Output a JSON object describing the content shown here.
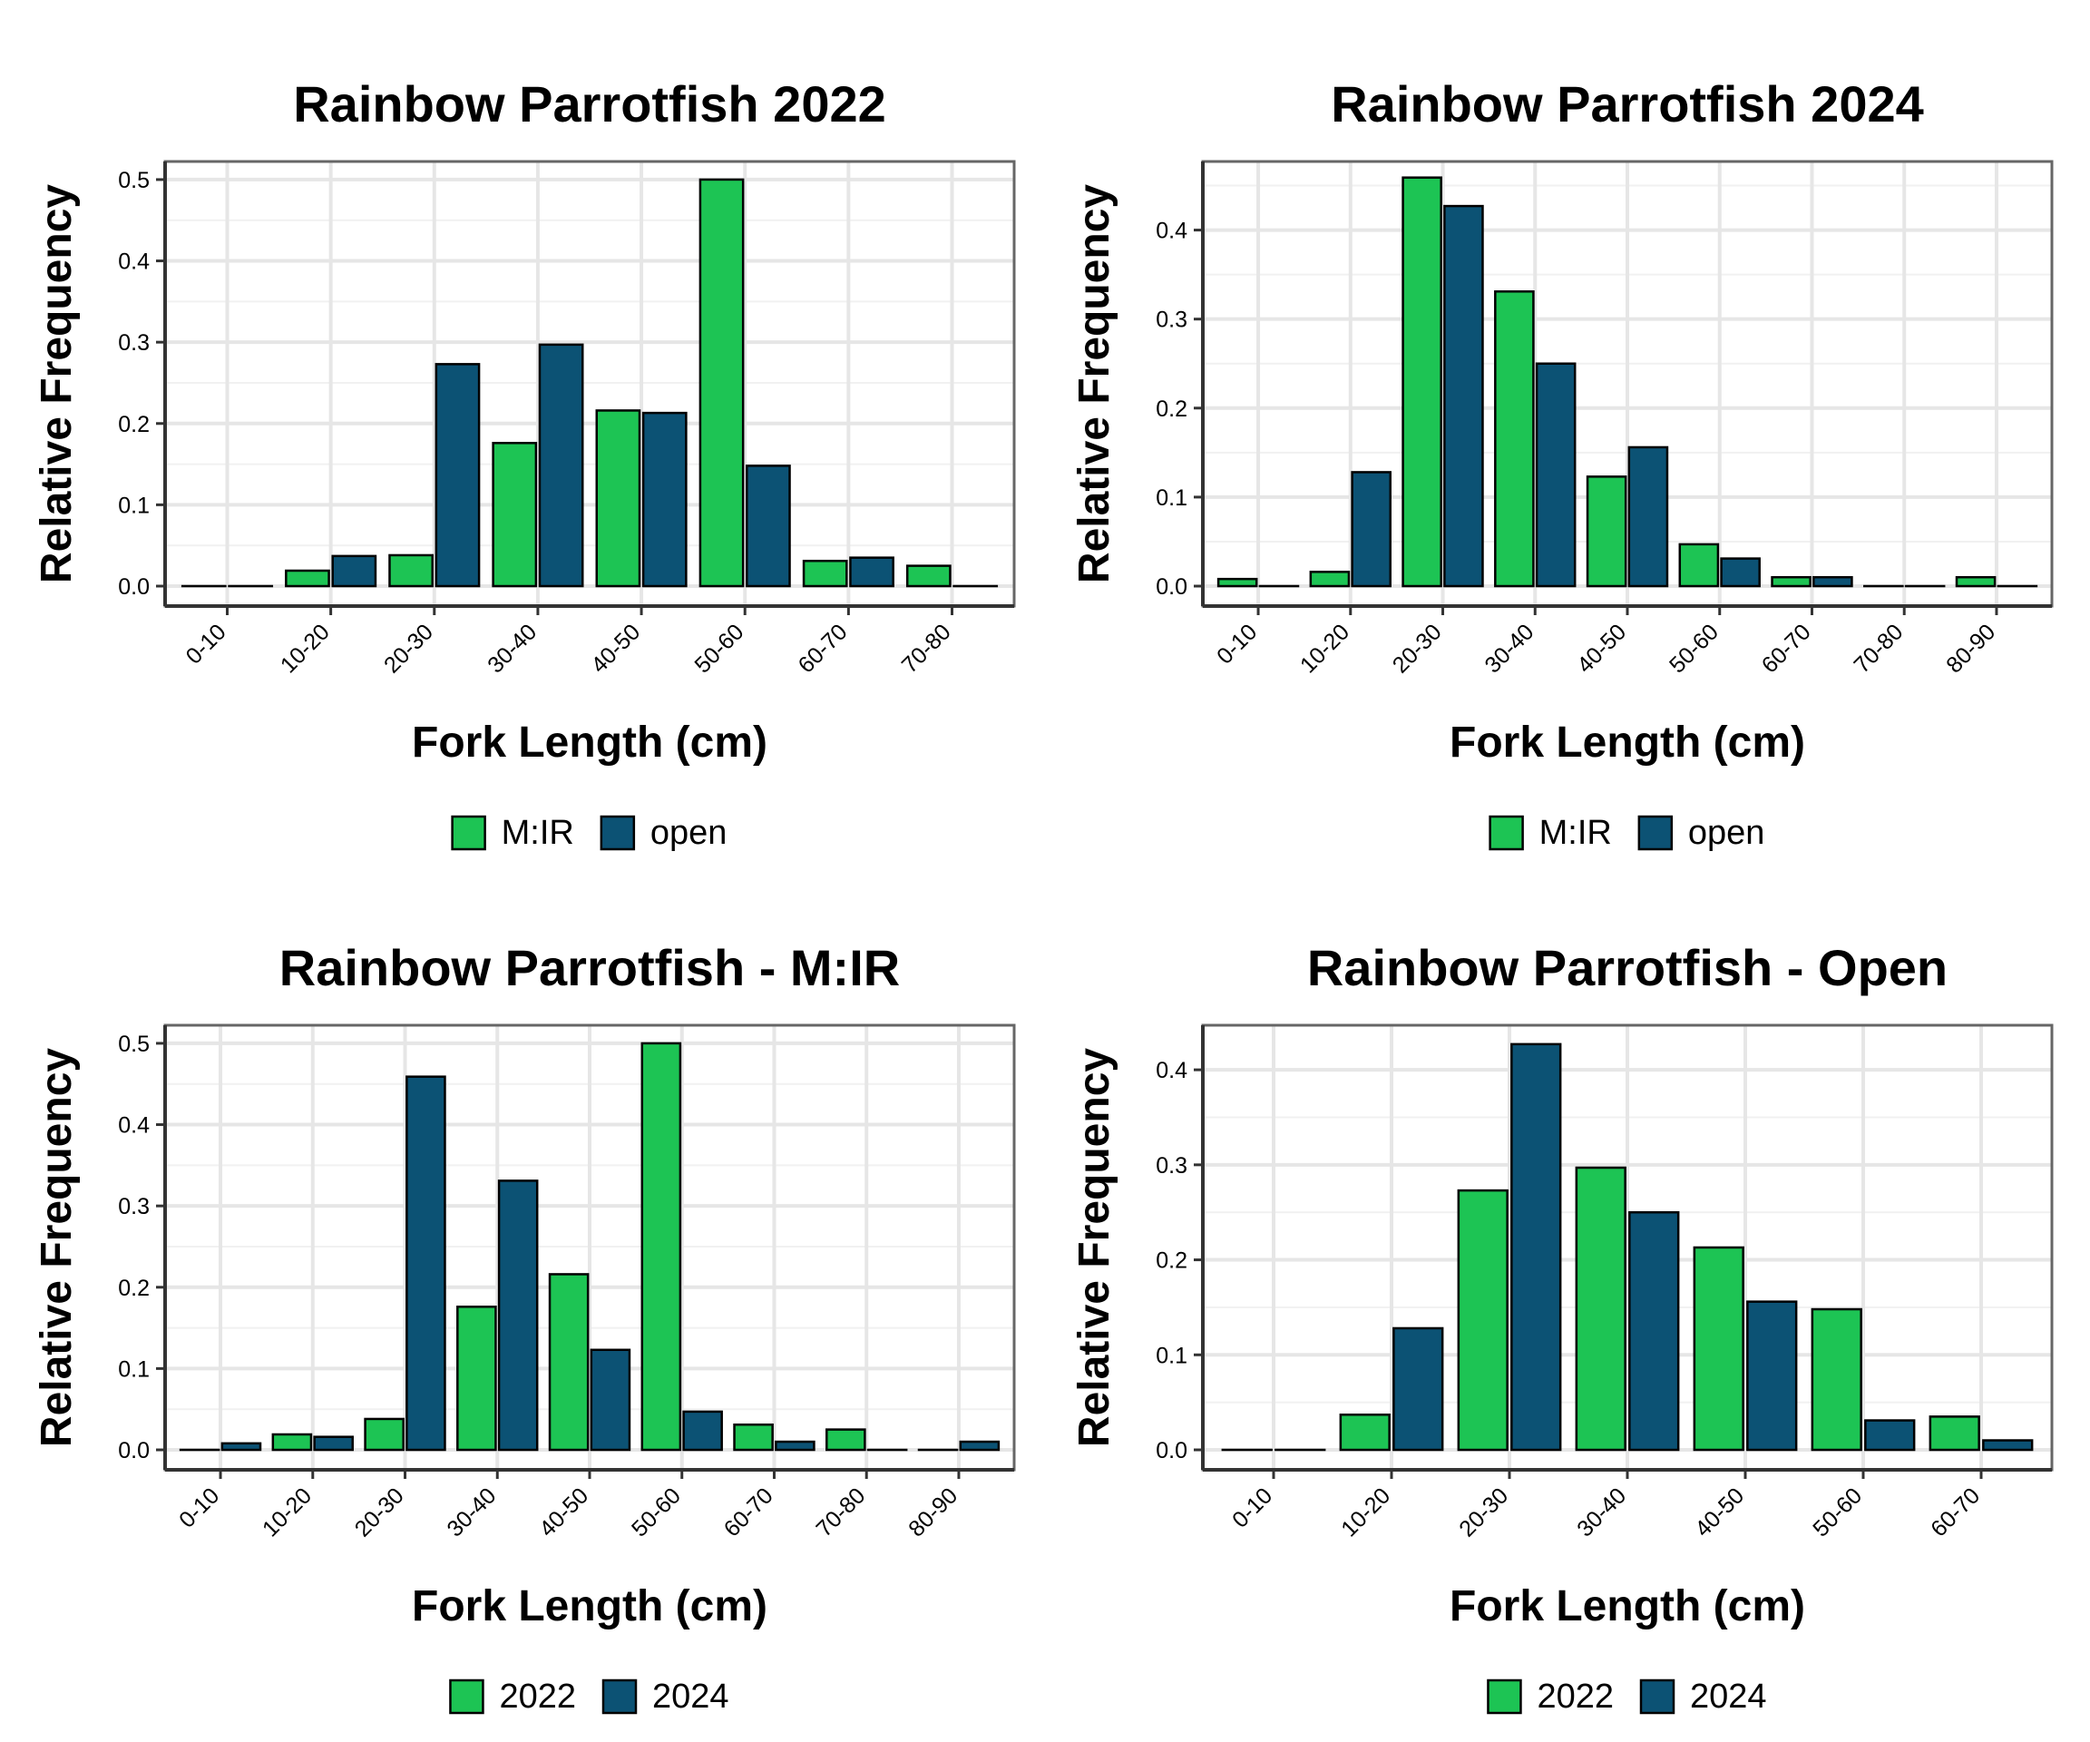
{
  "chart_data": [
    {
      "type": "bar",
      "title": "Rainbow Parrotfish 2022",
      "xlabel": "Fork Length (cm)",
      "ylabel": "Relative Frequency",
      "categories": [
        "0-10",
        "10-20",
        "20-30",
        "30-40",
        "40-50",
        "50-60",
        "60-70",
        "70-80"
      ],
      "series": [
        {
          "name": "M:IR",
          "color": "#1DC454",
          "values": [
            0,
            0.019,
            0.038,
            0.176,
            0.216,
            0.5,
            0.031,
            0.025
          ]
        },
        {
          "name": "open",
          "color": "#0C5274",
          "values": [
            0,
            0.037,
            0.273,
            0.297,
            0.213,
            0.148,
            0.035,
            0
          ]
        }
      ],
      "ylim": [
        0,
        0.52
      ],
      "yticks": [
        0,
        0.1,
        0.2,
        0.3,
        0.4,
        0.5
      ],
      "ytick_labels": [
        "0.0",
        "0.1",
        "0.2",
        "0.3",
        "0.4",
        "0.5"
      ],
      "grid": true,
      "legend": "bottom"
    },
    {
      "type": "bar",
      "title": "Rainbow Parrotfish 2024",
      "xlabel": "Fork Length (cm)",
      "ylabel": "Relative Frequency",
      "categories": [
        "0-10",
        "10-20",
        "20-30",
        "30-40",
        "40-50",
        "50-60",
        "60-70",
        "70-80",
        "80-90"
      ],
      "series": [
        {
          "name": "M:IR",
          "color": "#1DC454",
          "values": [
            0.008,
            0.016,
            0.459,
            0.331,
            0.123,
            0.047,
            0.01,
            0,
            0.01
          ]
        },
        {
          "name": "open",
          "color": "#0C5274",
          "values": [
            0,
            0.128,
            0.427,
            0.25,
            0.156,
            0.031,
            0.01,
            0,
            0
          ]
        }
      ],
      "ylim": [
        0,
        0.475
      ],
      "yticks": [
        0,
        0.1,
        0.2,
        0.3,
        0.4
      ],
      "ytick_labels": [
        "0.0",
        "0.1",
        "0.2",
        "0.3",
        "0.4"
      ],
      "grid": true,
      "legend": "bottom"
    },
    {
      "type": "bar",
      "title": "Rainbow Parrotfish - M:IR",
      "xlabel": "Fork Length (cm)",
      "ylabel": "Relative Frequency",
      "categories": [
        "0-10",
        "10-20",
        "20-30",
        "30-40",
        "40-50",
        "50-60",
        "60-70",
        "70-80",
        "80-90"
      ],
      "series": [
        {
          "name": "2022",
          "color": "#1DC454",
          "values": [
            0,
            0.019,
            0.038,
            0.176,
            0.216,
            0.5,
            0.031,
            0.025,
            0
          ]
        },
        {
          "name": "2024",
          "color": "#0C5274",
          "values": [
            0.008,
            0.016,
            0.459,
            0.331,
            0.123,
            0.047,
            0.01,
            0,
            0.01
          ]
        }
      ],
      "ylim": [
        0,
        0.52
      ],
      "yticks": [
        0,
        0.1,
        0.2,
        0.3,
        0.4,
        0.5
      ],
      "ytick_labels": [
        "0.0",
        "0.1",
        "0.2",
        "0.3",
        "0.4",
        "0.5"
      ],
      "grid": true,
      "legend": "bottom"
    },
    {
      "type": "bar",
      "title": "Rainbow Parrotfish - Open",
      "xlabel": "Fork Length (cm)",
      "ylabel": "Relative Frequency",
      "categories": [
        "0-10",
        "10-20",
        "20-30",
        "30-40",
        "40-50",
        "50-60",
        "60-70"
      ],
      "series": [
        {
          "name": "2022",
          "color": "#1DC454",
          "values": [
            0,
            0.037,
            0.273,
            0.297,
            0.213,
            0.148,
            0.035
          ]
        },
        {
          "name": "2024",
          "color": "#0C5274",
          "values": [
            0,
            0.128,
            0.427,
            0.25,
            0.156,
            0.031,
            0.01
          ]
        }
      ],
      "ylim": [
        0,
        0.445
      ],
      "yticks": [
        0,
        0.1,
        0.2,
        0.3,
        0.4
      ],
      "ytick_labels": [
        "0.0",
        "0.1",
        "0.2",
        "0.3",
        "0.4"
      ],
      "grid": true,
      "legend": "bottom"
    }
  ]
}
